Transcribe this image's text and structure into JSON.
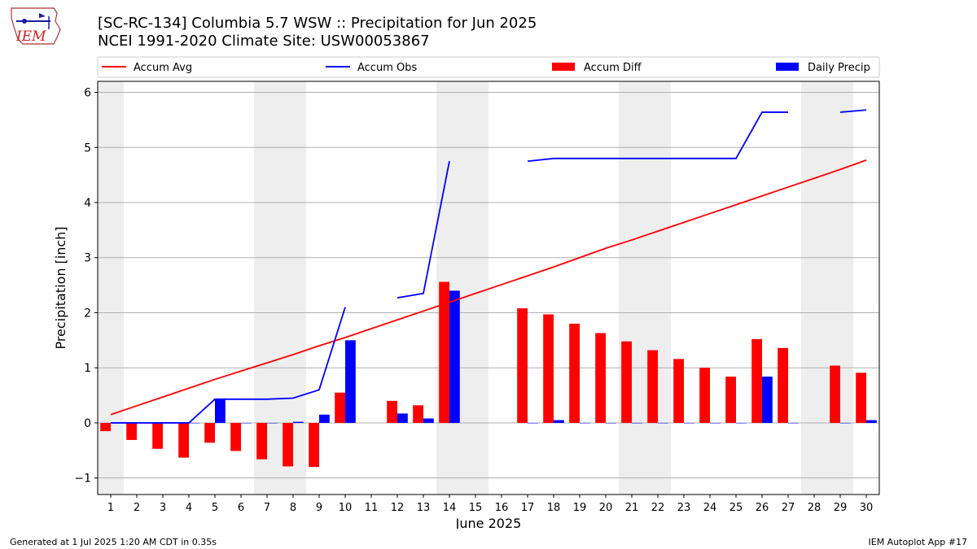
{
  "header": {
    "logo_text": "IEM",
    "title_line1": "[SC-RC-134] Columbia 5.7 WSW :: Precipitation for Jun 2025",
    "title_line2": "NCEI 1991-2020 Climate Site: USW00053867"
  },
  "footer": {
    "left": "Generated at 1 Jul 2025 1:20 AM CDT in 0.35s",
    "right": "IEM Autoplot App #17"
  },
  "colors": {
    "avg": "#ff0000",
    "obs": "#0000ff",
    "diff": "#ff0000",
    "daily": "#0000ff",
    "weekend_shade": "#eeeeee",
    "grid": "#b0b0b0"
  },
  "chart_data": {
    "type": "bar",
    "xlabel": "June 2025",
    "ylabel": "Precipitation [inch]",
    "ylim": [
      -1.3,
      6.2
    ],
    "yticks": [
      -1,
      0,
      1,
      2,
      3,
      4,
      5,
      6
    ],
    "xlim": [
      0.5,
      30.5
    ],
    "grid": "horizontal",
    "legend_position": "top",
    "legend": [
      "Accum Avg",
      "Accum Obs",
      "Accum Diff",
      "Daily Precip"
    ],
    "days": [
      1,
      2,
      3,
      4,
      5,
      6,
      7,
      8,
      9,
      10,
      11,
      12,
      13,
      14,
      15,
      16,
      17,
      18,
      19,
      20,
      21,
      22,
      23,
      24,
      25,
      26,
      27,
      28,
      29,
      30
    ],
    "shaded_days": [
      [
        0.5,
        1.5
      ],
      [
        6.5,
        8.5
      ],
      [
        13.5,
        15.5
      ],
      [
        20.5,
        22.5
      ],
      [
        27.5,
        29.5
      ]
    ],
    "series": [
      {
        "name": "Accum Avg",
        "kind": "line",
        "values": [
          0.15,
          0.31,
          0.47,
          0.63,
          0.79,
          0.94,
          1.09,
          1.24,
          1.4,
          1.55,
          1.71,
          1.87,
          2.03,
          2.19,
          2.35,
          2.51,
          2.67,
          2.83,
          3.0,
          3.17,
          3.32,
          3.48,
          3.64,
          3.8,
          3.96,
          4.12,
          4.28,
          4.44,
          4.6,
          4.77
        ]
      },
      {
        "name": "Accum Obs",
        "kind": "line",
        "values": [
          0.0,
          0.0,
          0.0,
          0.0,
          0.43,
          0.43,
          0.43,
          0.45,
          0.6,
          2.1,
          null,
          2.27,
          2.35,
          4.75,
          null,
          null,
          4.75,
          4.8,
          4.8,
          4.8,
          4.8,
          4.8,
          4.8,
          4.8,
          4.8,
          5.64,
          5.64,
          null,
          5.64,
          5.68
        ]
      },
      {
        "name": "Accum Diff",
        "kind": "bar",
        "values": [
          -0.15,
          -0.31,
          -0.47,
          -0.63,
          -0.36,
          -0.51,
          -0.66,
          -0.79,
          -0.8,
          0.55,
          null,
          0.4,
          0.32,
          2.56,
          null,
          null,
          2.08,
          1.97,
          1.8,
          1.63,
          1.48,
          1.32,
          1.16,
          1.0,
          0.84,
          1.52,
          1.36,
          null,
          1.04,
          0.91
        ]
      },
      {
        "name": "Daily Precip",
        "kind": "bar",
        "values": [
          0,
          0,
          0,
          0,
          0.43,
          0,
          0,
          0.02,
          0.15,
          1.5,
          null,
          0.17,
          0.08,
          2.4,
          null,
          null,
          0,
          0.05,
          0,
          0,
          0,
          0,
          0,
          0,
          0,
          0.84,
          0,
          null,
          0,
          0.05
        ]
      }
    ]
  }
}
